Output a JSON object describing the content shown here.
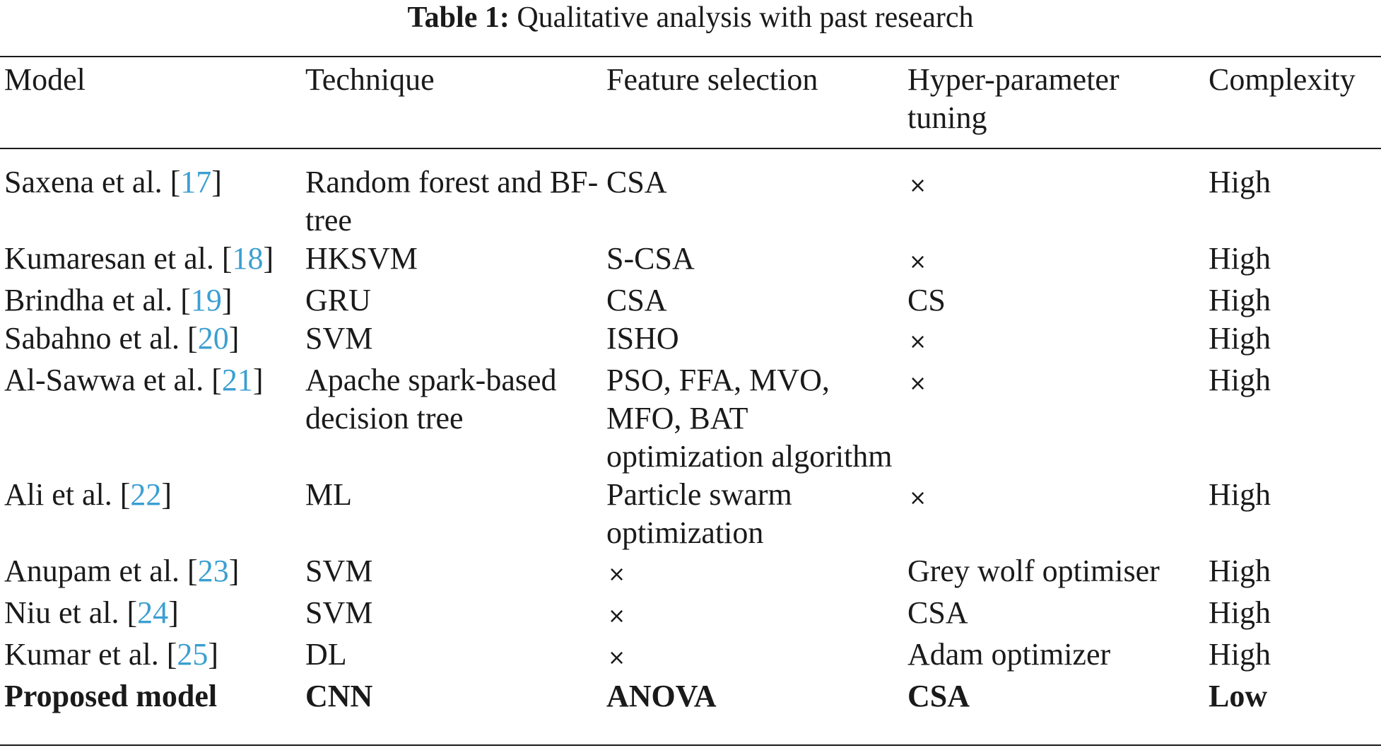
{
  "caption": {
    "label": "Table 1:",
    "text": "Qualitative analysis with past research"
  },
  "header": [
    "Model",
    "Technique",
    "Feature selection",
    "Hyper-parameter tuning",
    "Complexity"
  ],
  "cross_symbol": "×",
  "rows": [
    {
      "model": "Saxena et al. ",
      "ref": "17",
      "technique": "Random forest and BF-tree",
      "feature_selection": "CSA",
      "feature_cross": false,
      "tuning": "",
      "tuning_cross": true,
      "complexity": "High"
    },
    {
      "model": "Kumaresan et al. ",
      "ref": "18",
      "technique": "HKSVM",
      "feature_selection": "S-CSA",
      "feature_cross": false,
      "tuning": "",
      "tuning_cross": true,
      "complexity": "High"
    },
    {
      "model": "Brindha et al. ",
      "ref": "19",
      "technique": "GRU",
      "feature_selection": "CSA",
      "feature_cross": false,
      "tuning": "CS",
      "tuning_cross": false,
      "complexity": "High"
    },
    {
      "model": "Sabahno et al. ",
      "ref": "20",
      "technique": "SVM",
      "feature_selection": "ISHO",
      "feature_cross": false,
      "tuning": "",
      "tuning_cross": true,
      "complexity": "High"
    },
    {
      "model": "Al-Sawwa et al. ",
      "ref": "21",
      "technique": "Apache spark-based decision tree",
      "feature_selection": "PSO, FFA, MVO, MFO, BAT optimization algorithm",
      "feature_cross": false,
      "tuning": "",
      "tuning_cross": true,
      "complexity": "High"
    },
    {
      "model": "Ali et al. ",
      "ref": "22",
      "technique": "ML",
      "feature_selection": "Particle swarm optimization",
      "feature_cross": false,
      "tuning": "",
      "tuning_cross": true,
      "complexity": "High"
    },
    {
      "model": "Anupam et al. ",
      "ref": "23",
      "technique": "SVM",
      "feature_selection": "",
      "feature_cross": true,
      "tuning": "Grey wolf optimiser",
      "tuning_cross": false,
      "complexity": "High"
    },
    {
      "model": "Niu et al. ",
      "ref": "24",
      "technique": "SVM",
      "feature_selection": "",
      "feature_cross": true,
      "tuning": "CSA",
      "tuning_cross": false,
      "complexity": "High"
    },
    {
      "model": "Kumar et al. ",
      "ref": "25",
      "technique": "DL",
      "feature_selection": "",
      "feature_cross": true,
      "tuning": "Adam optimizer",
      "tuning_cross": false,
      "complexity": "High"
    },
    {
      "model": "Proposed model",
      "ref": "",
      "technique": "CNN",
      "feature_selection": "ANOVA",
      "feature_cross": false,
      "tuning": "CSA",
      "tuning_cross": false,
      "complexity": "Low",
      "bold": true
    }
  ]
}
